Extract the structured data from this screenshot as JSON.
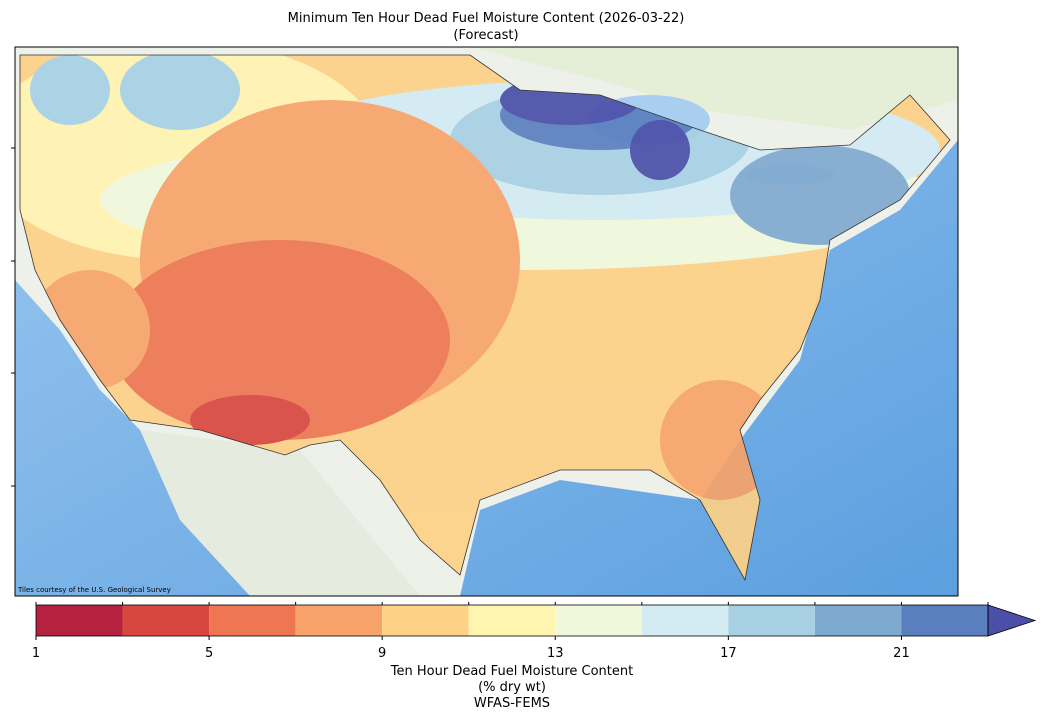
{
  "title": [
    "Minimum Ten Hour Dead Fuel Moisture Content (2026-03-22)",
    "(Forecast)"
  ],
  "attribution": "Tiles courtesy of the U.S. Geological Survey",
  "colorbar": {
    "boundaries": [
      1,
      3,
      5,
      7,
      9,
      11,
      13,
      15,
      17,
      19,
      21,
      23
    ],
    "colors": [
      "#b5213f",
      "#d7473f",
      "#ee7652",
      "#f8a36a",
      "#fdd186",
      "#fff4b0",
      "#f0f8dc",
      "#d3ebf3",
      "#a7d0e4",
      "#7faad0",
      "#5a7fbf"
    ],
    "extend_color": "#4a4fa8",
    "ticks": [
      1,
      5,
      9,
      13,
      17,
      21
    ],
    "label": [
      "Ten Hour Dead Fuel Moisture Content",
      "(% dry wt)",
      "WFAS-FEMS"
    ]
  }
}
